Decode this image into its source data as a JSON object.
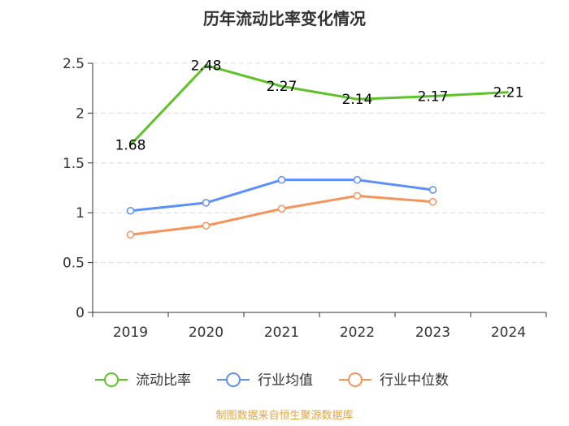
{
  "chart_data": {
    "type": "line",
    "title": "历年流动比率变化情况",
    "categories": [
      "2019",
      "2020",
      "2021",
      "2022",
      "2023",
      "2024"
    ],
    "ylim": [
      0,
      2.5
    ],
    "yticks": [
      0,
      0.5,
      1,
      1.5,
      2,
      2.5
    ],
    "ytick_labels": [
      "0",
      "0.5",
      "1",
      "1.5",
      "2",
      "2.5"
    ],
    "grid": true,
    "legend_position": "bottom",
    "series": [
      {
        "name": "流动比率",
        "color": "#5ec229",
        "values": [
          1.68,
          2.48,
          2.27,
          2.14,
          2.17,
          2.21
        ],
        "labels": [
          "1.68",
          "2.48",
          "2.27",
          "2.14",
          "2.17",
          "2.21"
        ],
        "show_labels": true
      },
      {
        "name": "行业均值",
        "color": "#5b8ff9",
        "values": [
          1.02,
          1.1,
          1.33,
          1.33,
          1.23,
          null
        ],
        "show_labels": false
      },
      {
        "name": "行业中位数",
        "color": "#f6935b",
        "values": [
          0.78,
          0.87,
          1.04,
          1.17,
          1.11,
          null
        ],
        "show_labels": false
      }
    ]
  },
  "footer": {
    "source": "制图数据来自恒生聚源数据库"
  }
}
